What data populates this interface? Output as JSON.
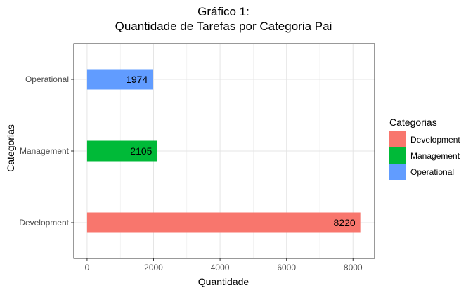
{
  "chart_data": {
    "type": "bar",
    "orientation": "horizontal",
    "title": "Gráfico 1:",
    "subtitle": "Quantidade de Tarefas por Categoria Pai",
    "xlabel": "Quantidade",
    "ylabel": "Categorias",
    "categories": [
      "Development",
      "Management",
      "Operational"
    ],
    "values": [
      8220,
      2105,
      1974
    ],
    "data_labels": [
      "8220",
      "2105",
      "1974"
    ],
    "colors": [
      "#F8766D",
      "#00BA38",
      "#619CFF"
    ],
    "xlim": [
      -400,
      8650
    ],
    "xticks": [
      0,
      2000,
      4000,
      6000,
      8000
    ],
    "xtick_labels": [
      "0",
      "2000",
      "4000",
      "6000",
      "8000"
    ],
    "grid": true,
    "legend": {
      "title": "Categorias",
      "position": "right",
      "entries": [
        "Development",
        "Management",
        "Operational"
      ]
    }
  }
}
